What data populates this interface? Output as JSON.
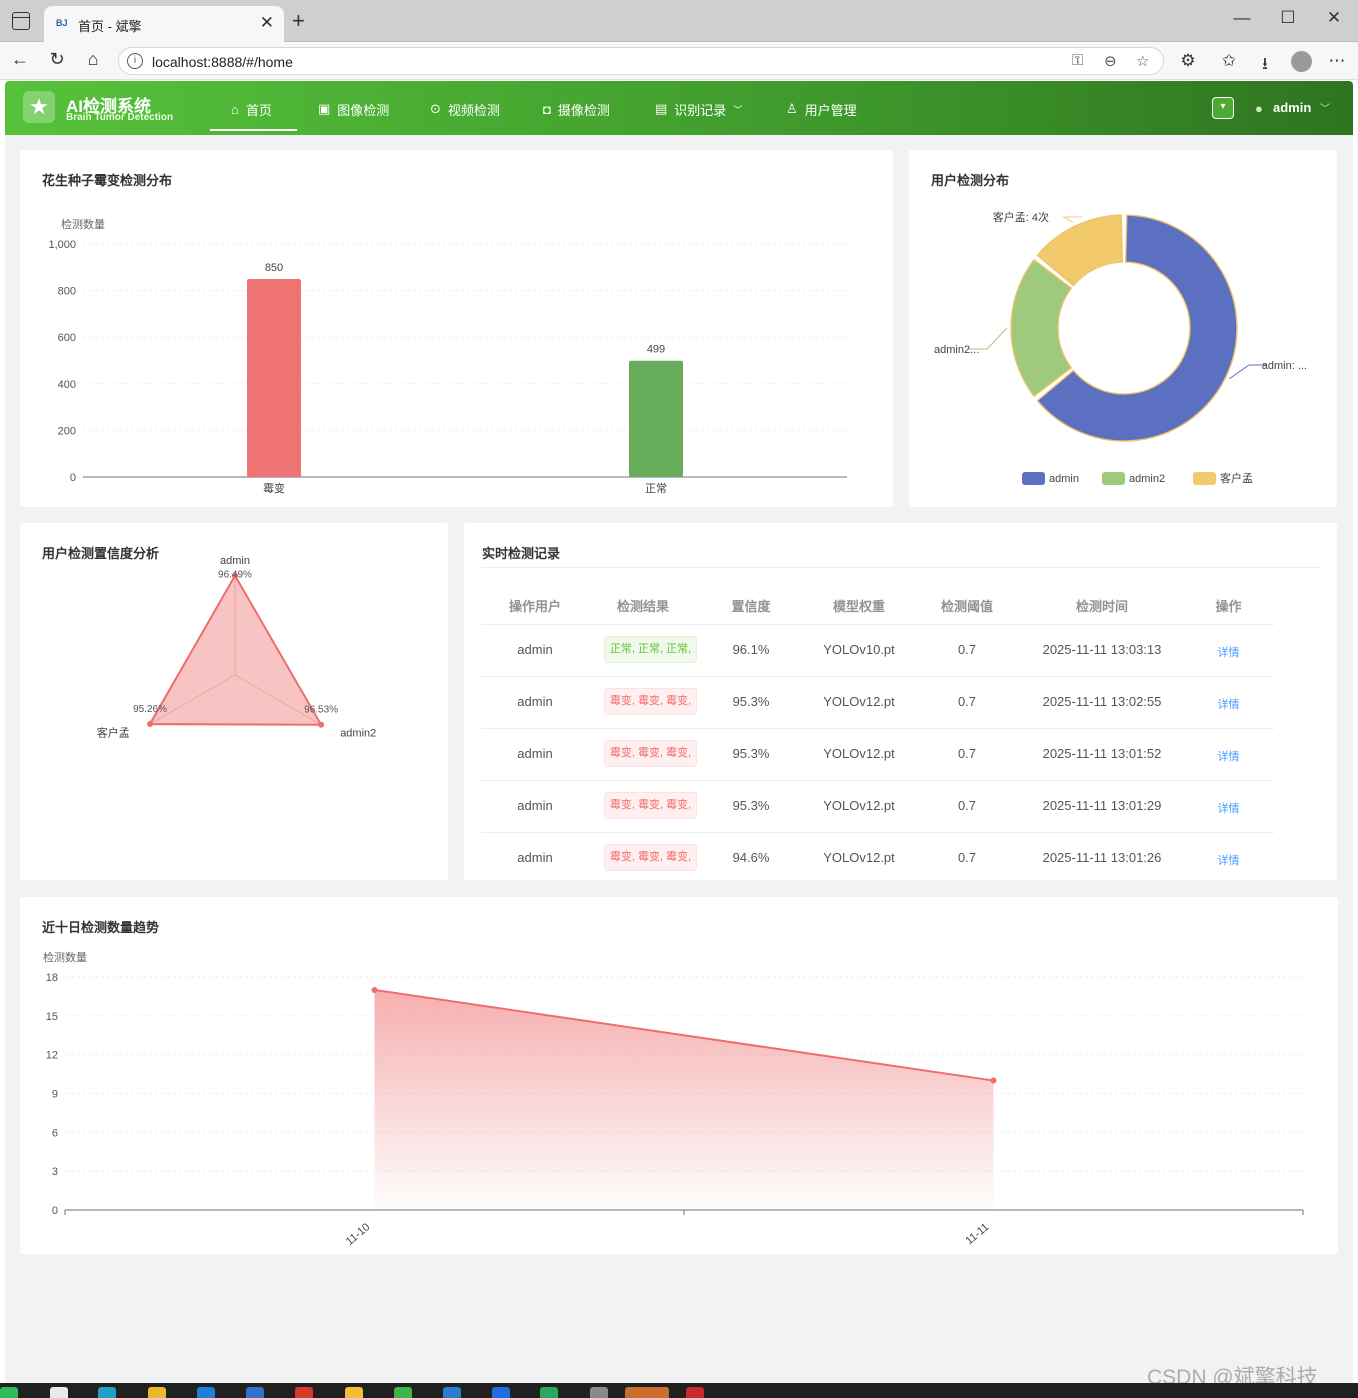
{
  "browser": {
    "tab_favicon": "BJ",
    "tab_title": "首页 - 斌擎",
    "url": "localhost:8888/#/home"
  },
  "app": {
    "title": "AI检测系统",
    "subtitle": "Brain Tumor Detection",
    "menu": [
      {
        "label": "首页",
        "icon": "home-icon",
        "active": true
      },
      {
        "label": "图像检测",
        "icon": "image-icon"
      },
      {
        "label": "视频检测",
        "icon": "video-play-icon"
      },
      {
        "label": "摄像检测",
        "icon": "camera-icon"
      },
      {
        "label": "识别记录",
        "icon": "document-icon",
        "has_dropdown": true
      },
      {
        "label": "用户管理",
        "icon": "user-icon"
      }
    ],
    "user": "admin",
    "brand_color": "#4caf35"
  },
  "bar_card": {
    "title": "花生种子霉变检测分布"
  },
  "pie_card": {
    "title": "用户检测分布"
  },
  "radar_card": {
    "title": "用户检测置信度分析"
  },
  "table_card": {
    "title": "实时检测记录",
    "columns": [
      "操作用户",
      "检测结果",
      "置信度",
      "模型权重",
      "检测阈值",
      "检测时间",
      "操作"
    ],
    "rows": [
      {
        "user": "admin",
        "result": "正常, 正常, 正常,",
        "status": "ok",
        "confidence": "96.1%",
        "model": "YOLOv10.pt",
        "threshold": "0.7",
        "time": "2025-11-11 13:03:13",
        "action": "详情"
      },
      {
        "user": "admin",
        "result": "霉变, 霉变, 霉变,",
        "status": "bad",
        "confidence": "95.3%",
        "model": "YOLOv12.pt",
        "threshold": "0.7",
        "time": "2025-11-11 13:02:55",
        "action": "详情"
      },
      {
        "user": "admin",
        "result": "霉变, 霉变, 霉变,",
        "status": "bad",
        "confidence": "95.3%",
        "model": "YOLOv12.pt",
        "threshold": "0.7",
        "time": "2025-11-11 13:01:52",
        "action": "详情"
      },
      {
        "user": "admin",
        "result": "霉变, 霉变, 霉变,",
        "status": "bad",
        "confidence": "95.3%",
        "model": "YOLOv12.pt",
        "threshold": "0.7",
        "time": "2025-11-11 13:01:29",
        "action": "详情"
      },
      {
        "user": "admin",
        "result": "霉变, 霉变, 霉变,",
        "status": "bad",
        "confidence": "94.6%",
        "model": "YOLOv12.pt",
        "threshold": "0.7",
        "time": "2025-11-11 13:01:26",
        "action": "详情"
      }
    ]
  },
  "line_card": {
    "title": "近十日检测数量趋势"
  },
  "watermark": "CSDN @斌擎科技",
  "chart_data": [
    {
      "type": "bar",
      "title": "花生种子霉变检测分布",
      "ylabel": "检测数量",
      "categories": [
        "霉变",
        "正常"
      ],
      "values": [
        850,
        499
      ],
      "colors": [
        "#ef7372",
        "#67ad5b"
      ],
      "ylim": [
        0,
        1000
      ],
      "yticks": [
        "0",
        "200",
        "400",
        "600",
        "800",
        "1,000"
      ],
      "grid": true
    },
    {
      "type": "pie",
      "title": "用户检测分布",
      "donut": true,
      "series": [
        {
          "name": "admin",
          "value": 18,
          "color": "#5b70c0",
          "label": "admin: ..."
        },
        {
          "name": "admin2",
          "value": 6,
          "color": "#9fca7d",
          "label": "admin2..."
        },
        {
          "name": "客户孟",
          "value": 4,
          "color": "#f2ca6b",
          "label": "客户孟: 4次"
        }
      ],
      "legend": "bottom"
    },
    {
      "type": "radar",
      "title": "用户检测置信度分析",
      "indicators": [
        "admin",
        "admin2",
        "客户孟"
      ],
      "values": [
        96.49,
        96.53,
        95.26
      ],
      "labels": [
        "96.49%",
        "96.53%",
        "95.26%"
      ],
      "color": "#ee6e6e"
    },
    {
      "type": "area",
      "title": "近十日检测数量趋势",
      "ylabel": "检测数量",
      "x": [
        "11-10",
        "11-11"
      ],
      "values": [
        17,
        10
      ],
      "ylim": [
        0,
        18
      ],
      "yticks": [
        "0",
        "3",
        "6",
        "9",
        "12",
        "15",
        "18"
      ],
      "color": "#ee6e6e",
      "grid": true
    }
  ]
}
